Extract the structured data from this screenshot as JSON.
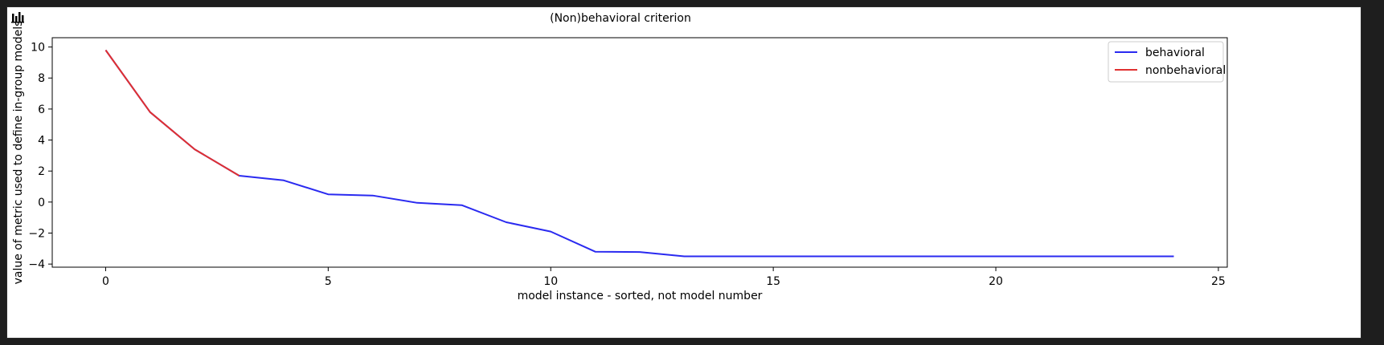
{
  "toolbar": {
    "icon": "bar-chart-icon"
  },
  "chart_data": {
    "type": "line",
    "title": "(Non)behavioral criterion",
    "xlabel": "model instance - sorted, not model number",
    "ylabel": "value of metric used to define in-group models",
    "xlim": [
      -1.2,
      25.2
    ],
    "ylim": [
      -4.2,
      10.6
    ],
    "xticks": [
      0,
      5,
      10,
      15,
      20,
      25
    ],
    "yticks": [
      -4,
      -2,
      0,
      2,
      4,
      6,
      8,
      10
    ],
    "grid": false,
    "legend_position": "top-right",
    "series": [
      {
        "name": "behavioral",
        "color": "#2a2af0",
        "x": [
          0,
          1,
          2,
          3,
          4,
          5,
          6,
          7,
          8,
          9,
          10,
          11,
          12,
          13,
          14,
          15,
          16,
          17,
          18,
          19,
          20,
          21,
          22,
          23,
          24
        ],
        "y": [
          9.8,
          5.8,
          3.4,
          1.7,
          1.4,
          0.5,
          0.42,
          -0.05,
          -0.2,
          -1.3,
          -1.9,
          -3.2,
          -3.22,
          -3.5,
          -3.5,
          -3.5,
          -3.5,
          -3.5,
          -3.5,
          -3.5,
          -3.5,
          -3.5,
          -3.5,
          -3.5,
          -3.5
        ]
      },
      {
        "name": "nonbehavioral",
        "color": "#e03030",
        "x": [
          0,
          1,
          2,
          3
        ],
        "y": [
          9.8,
          5.8,
          3.4,
          1.7
        ]
      }
    ]
  }
}
